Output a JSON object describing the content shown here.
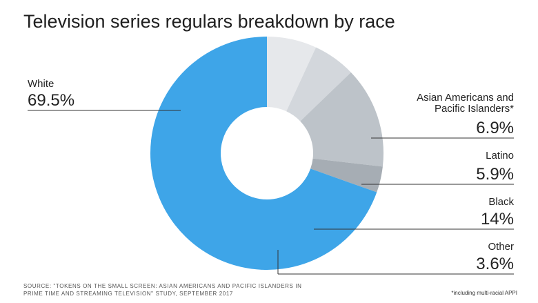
{
  "chart_data": {
    "type": "pie",
    "title": "Television series regulars breakdown by race",
    "categories": [
      "White",
      "Asian Americans and Pacific Islanders*",
      "Latino",
      "Black",
      "Other"
    ],
    "values": [
      69.5,
      6.9,
      5.9,
      14,
      3.6
    ],
    "value_labels": [
      "69.5%",
      "6.9%",
      "5.9%",
      "14%",
      "3.6%"
    ],
    "colors": [
      "#3ea5e8",
      "#e6e8eb",
      "#d3d7dc",
      "#bdc3c9",
      "#a6adb4"
    ],
    "donut": true,
    "legend": "none",
    "source": "Source: \"Tokens on the small screen: Asian Americans and Pacific Islanders in prime time and streaming television\" study, September 2017",
    "footnote": "*including multi-racial APPI"
  }
}
